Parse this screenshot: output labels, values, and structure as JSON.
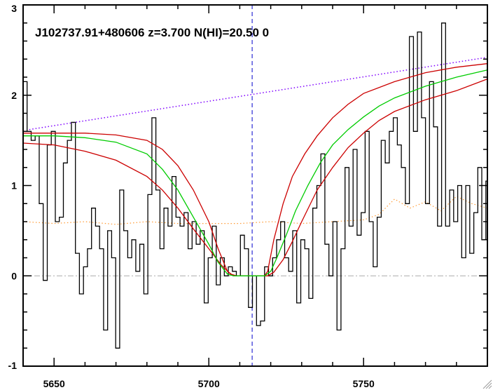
{
  "chart_data": {
    "type": "line",
    "title": "J102737.91+480606 z=3.700 N(HI)=20.50 0",
    "xlabel": "",
    "ylabel": "",
    "xlim": [
      5640,
      5790
    ],
    "ylim": [
      -1,
      3
    ],
    "x_ticks": [
      5650,
      5700,
      5750
    ],
    "y_ticks": [
      -1,
      0,
      1,
      2,
      3
    ],
    "grid": false,
    "legend": "none",
    "center_wavelength": 5714,
    "colors": {
      "flux": "#000000",
      "model": "#00cc00",
      "model_bounds": "#cc0000",
      "continuum": "#7f00ff",
      "error": "#ff9933",
      "zero_line": "#aaaaaa",
      "center_line": "#0000cc"
    },
    "series": [
      {
        "key": "flux",
        "style": "steps",
        "x": [
          5640,
          5641.3,
          5642.6,
          5643.9,
          5645.2,
          5646.5,
          5647.8,
          5649.1,
          5650.4,
          5651.7,
          5653,
          5654.3,
          5655.6,
          5656.9,
          5658.2,
          5659.5,
          5660.8,
          5662.1,
          5663.4,
          5664.7,
          5666,
          5667.3,
          5668.6,
          5669.9,
          5671.2,
          5672.5,
          5673.8,
          5675.1,
          5676.4,
          5677.7,
          5679,
          5680.3,
          5681.6,
          5682.9,
          5684.2,
          5685.5,
          5686.8,
          5688.1,
          5689.4,
          5690.7,
          5692,
          5693.3,
          5694.6,
          5695.9,
          5697.2,
          5698.5,
          5699.8,
          5701.1,
          5702.4,
          5703.7,
          5705,
          5706.3,
          5707.6,
          5708.9,
          5710.2,
          5711.5,
          5712.8,
          5714.1,
          5715.4,
          5716.7,
          5718,
          5719.3,
          5720.6,
          5721.9,
          5723.2,
          5724.5,
          5725.8,
          5727.1,
          5728.4,
          5729.7,
          5731,
          5732.3,
          5733.6,
          5734.9,
          5736.2,
          5737.5,
          5738.8,
          5740.1,
          5741.4,
          5742.7,
          5744,
          5745.3,
          5746.6,
          5747.9,
          5749.2,
          5750.5,
          5751.8,
          5753.1,
          5754.4,
          5755.7,
          5757,
          5758.3,
          5759.6,
          5760.9,
          5762.2,
          5763.5,
          5764.8,
          5766.1,
          5767.4,
          5768.7,
          5770,
          5771.3,
          5772.6,
          5773.9,
          5775.2,
          5776.5,
          5777.8,
          5779.1,
          5780.4,
          5781.7,
          5783,
          5784.3,
          5785.6,
          5786.9,
          5788.2,
          5789.5
        ],
        "y": [
          2.15,
          1.6,
          1.5,
          1.55,
          0.8,
          -0.05,
          1.45,
          1.6,
          0.6,
          0.65,
          1.25,
          1.5,
          1.7,
          0.25,
          -0.2,
          0.1,
          0.3,
          0.75,
          0.55,
          0.3,
          -0.6,
          0.5,
          0.2,
          -0.8,
          0.95,
          0.5,
          0.2,
          0.4,
          0.05,
          0.35,
          -0.2,
          0.9,
          1.75,
          0.95,
          0.3,
          0.75,
          0.55,
          1.1,
          0.65,
          0.55,
          0.7,
          0.3,
          0.6,
          0.35,
          0.5,
          -0.3,
          0.2,
          0.55,
          -0.1,
          0.2,
          0.0,
          0.1,
          0.05,
          0.0,
          0.45,
          0.3,
          -0.35,
          0.0,
          -0.55,
          -0.5,
          0.1,
          0.0,
          0.2,
          0.4,
          0.6,
          0.2,
          0.05,
          0.5,
          -0.3,
          0.4,
          0.3,
          -0.25,
          0.75,
          1.0,
          1.35,
          0.35,
          0.0,
          0.6,
          -0.6,
          0.3,
          1.2,
          0.55,
          1.4,
          0.45,
          0.7,
          1.6,
          0.6,
          0.1,
          0.65,
          1.5,
          1.25,
          1.6,
          1.75,
          1.45,
          1.2,
          0.8,
          2.65,
          1.6,
          2.7,
          1.75,
          0.8,
          2.15,
          1.65,
          0.55,
          2.8,
          0.55,
          0.95,
          0.6,
          1.0,
          0.2,
          1.0,
          0.25,
          0.7,
          1.2,
          0.4,
          1.05
        ]
      },
      {
        "key": "model",
        "style": "line",
        "x": [
          5640,
          5650,
          5660,
          5670,
          5680,
          5685,
          5690,
          5695,
          5700,
          5703,
          5706,
          5708,
          5714,
          5718,
          5720,
          5722,
          5725,
          5728,
          5732,
          5736,
          5740,
          5745,
          5750,
          5755,
          5760,
          5770,
          5780,
          5790
        ],
        "y": [
          1.55,
          1.55,
          1.53,
          1.48,
          1.35,
          1.18,
          0.95,
          0.65,
          0.35,
          0.15,
          0.02,
          0.0,
          0.0,
          0.0,
          0.05,
          0.2,
          0.45,
          0.72,
          1.0,
          1.25,
          1.45,
          1.62,
          1.76,
          1.88,
          1.97,
          2.1,
          2.2,
          2.28
        ]
      },
      {
        "key": "model_upper",
        "style": "line",
        "x": [
          5640,
          5650,
          5660,
          5670,
          5680,
          5685,
          5690,
          5695,
          5700,
          5703,
          5706,
          5708,
          5714,
          5718,
          5719,
          5721,
          5724,
          5727,
          5731,
          5735,
          5740,
          5745,
          5750,
          5760,
          5770,
          5780,
          5790
        ],
        "y": [
          1.58,
          1.58,
          1.58,
          1.56,
          1.5,
          1.4,
          1.22,
          0.95,
          0.6,
          0.3,
          0.05,
          0.0,
          0.0,
          0.0,
          0.05,
          0.4,
          0.8,
          1.1,
          1.35,
          1.55,
          1.75,
          1.9,
          2.02,
          2.15,
          2.25,
          2.31,
          2.35
        ]
      },
      {
        "key": "model_lower",
        "style": "line",
        "x": [
          5640,
          5650,
          5660,
          5670,
          5680,
          5685,
          5690,
          5695,
          5700,
          5704,
          5707,
          5709,
          5714,
          5719,
          5721,
          5724,
          5727,
          5730,
          5735,
          5740,
          5745,
          5750,
          5755,
          5760,
          5770,
          5780,
          5790
        ],
        "y": [
          1.47,
          1.45,
          1.38,
          1.28,
          1.1,
          0.95,
          0.75,
          0.52,
          0.3,
          0.12,
          0.02,
          0.0,
          0.0,
          0.0,
          0.04,
          0.18,
          0.38,
          0.6,
          0.95,
          1.2,
          1.42,
          1.58,
          1.72,
          1.82,
          1.95,
          2.05,
          2.18
        ]
      },
      {
        "key": "continuum",
        "style": "dotted",
        "x": [
          5642,
          5790
        ],
        "y": [
          1.62,
          2.42
        ]
      },
      {
        "key": "error",
        "style": "dotted",
        "x": [
          5640,
          5650,
          5660,
          5670,
          5680,
          5690,
          5700,
          5710,
          5720,
          5730,
          5740,
          5750,
          5755,
          5760,
          5765,
          5770,
          5775,
          5780,
          5785,
          5790
        ],
        "y": [
          0.6,
          0.58,
          0.6,
          0.57,
          0.6,
          0.58,
          0.58,
          0.58,
          0.6,
          0.58,
          0.6,
          0.62,
          0.68,
          0.85,
          0.75,
          0.82,
          0.72,
          0.88,
          0.8,
          0.75
        ]
      }
    ]
  }
}
